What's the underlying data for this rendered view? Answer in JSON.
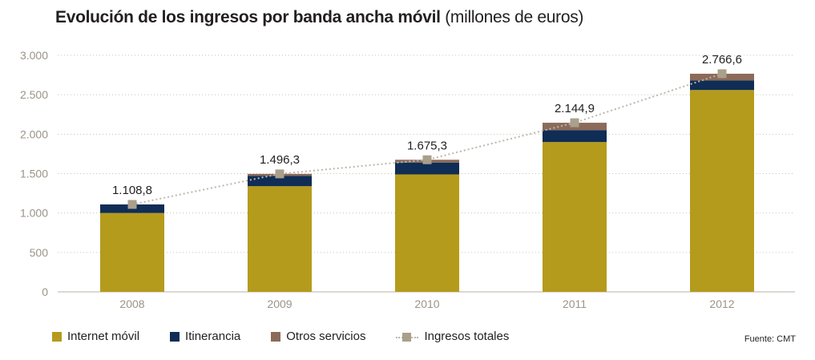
{
  "title": {
    "bold": "Evolución de los ingresos por banda ancha móvil",
    "unit": "(millones de euros)"
  },
  "chart_data": {
    "type": "bar",
    "stacked": true,
    "categories": [
      "2008",
      "2009",
      "2010",
      "2011",
      "2012"
    ],
    "series": [
      {
        "name": "Internet móvil",
        "color": "#b59b1c",
        "values": [
          1000,
          1340,
          1490,
          1900,
          2560
        ]
      },
      {
        "name": "Itinerancia",
        "color": "#0f2d55",
        "values": [
          108.8,
          130,
          150,
          150,
          120
        ]
      },
      {
        "name": "Otros servicios",
        "color": "#8b6a5a",
        "values": [
          0,
          26.3,
          35.3,
          94.9,
          86.6
        ]
      }
    ],
    "line_series": {
      "name": "Ingresos totales",
      "color": "#a9a08c",
      "values": [
        1108.8,
        1496.3,
        1675.3,
        2144.9,
        2766.6
      ],
      "labels": [
        "1.108,8",
        "1.496,3",
        "1.675,3",
        "2.144,9",
        "2.766,6"
      ]
    },
    "ylim": [
      0,
      3000
    ],
    "yticks": [
      0,
      500,
      1000,
      1500,
      2000,
      2500,
      3000
    ],
    "ytick_labels": [
      "0",
      "500",
      "1.000",
      "1.500",
      "2.000",
      "2.500",
      "3.000"
    ],
    "grid": true,
    "legend_position": "bottom-left"
  },
  "legend": {
    "internet": "Internet móvil",
    "itinerancia": "Itinerancia",
    "otros": "Otros servicios",
    "total": "Ingresos totales"
  },
  "source": "Fuente: CMT"
}
